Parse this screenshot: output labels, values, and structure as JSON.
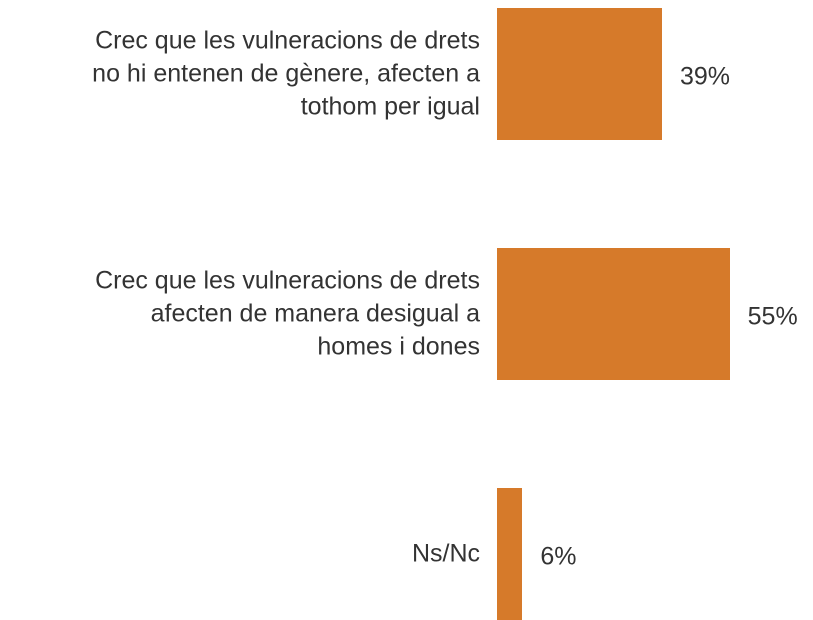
{
  "chart_data": {
    "type": "barh",
    "categories": [
      "Crec que les vulneracions de drets\nno hi entenen de gènere, afecten a\ntothom per igual",
      "Crec que les vulneracions de drets\nafecten de manera desigual a\nhomes i dones",
      "Ns/Nc"
    ],
    "values": [
      39,
      55,
      6
    ],
    "value_labels": [
      "39%",
      "55%",
      "6%"
    ],
    "color": "#d67a2a"
  }
}
